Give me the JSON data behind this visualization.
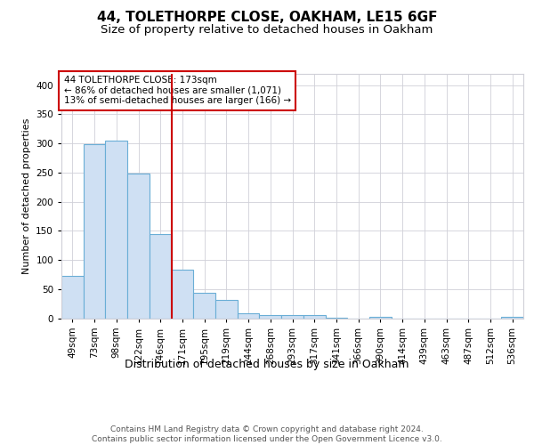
{
  "title1": "44, TOLETHORPE CLOSE, OAKHAM, LE15 6GF",
  "title2": "Size of property relative to detached houses in Oakham",
  "xlabel": "Distribution of detached houses by size in Oakham",
  "ylabel": "Number of detached properties",
  "categories": [
    "49sqm",
    "73sqm",
    "98sqm",
    "122sqm",
    "146sqm",
    "171sqm",
    "195sqm",
    "219sqm",
    "244sqm",
    "268sqm",
    "293sqm",
    "317sqm",
    "341sqm",
    "366sqm",
    "390sqm",
    "414sqm",
    "439sqm",
    "463sqm",
    "487sqm",
    "512sqm",
    "536sqm"
  ],
  "values": [
    72,
    299,
    304,
    248,
    144,
    83,
    44,
    32,
    9,
    6,
    5,
    6,
    1,
    0,
    3,
    0,
    0,
    0,
    0,
    0,
    3
  ],
  "bar_color": "#cfe0f3",
  "bar_edge_color": "#6aaed6",
  "vline_x": 4.5,
  "vline_color": "#cc0000",
  "annotation_text": "44 TOLETHORPE CLOSE: 173sqm\n← 86% of detached houses are smaller (1,071)\n13% of semi-detached houses are larger (166) →",
  "annotation_box_color": "#ffffff",
  "annotation_box_edge_color": "#cc0000",
  "ylim": [
    0,
    420
  ],
  "yticks": [
    0,
    50,
    100,
    150,
    200,
    250,
    300,
    350,
    400
  ],
  "grid_color": "#d0d0d8",
  "background_color": "#ffffff",
  "footer": "Contains HM Land Registry data © Crown copyright and database right 2024.\nContains public sector information licensed under the Open Government Licence v3.0.",
  "title_fontsize": 11,
  "subtitle_fontsize": 9.5,
  "xlabel_fontsize": 9,
  "ylabel_fontsize": 8,
  "tick_fontsize": 7.5,
  "annotation_fontsize": 7.5,
  "footer_fontsize": 6.5
}
